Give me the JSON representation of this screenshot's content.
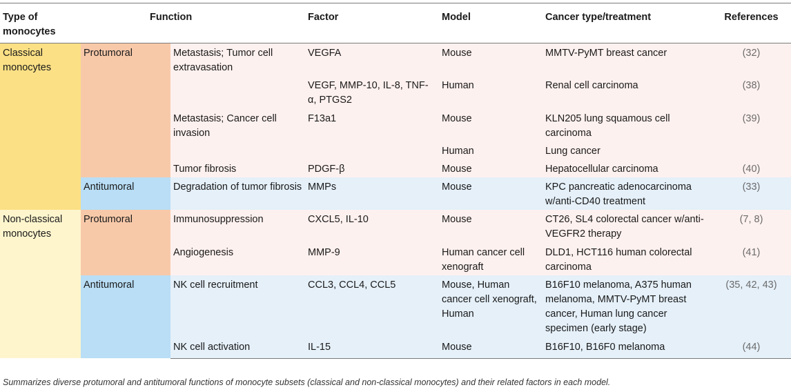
{
  "headers": [
    "Type of monocytes",
    "Function",
    "",
    "Factor",
    "Model",
    "Cancer type/treatment",
    "References"
  ],
  "groups": [
    {
      "type": "Classical monocytes",
      "subgroups": [
        {
          "function": "Protumoral",
          "rows": [
            {
              "subfunction": "Metastasis; Tumor cell extravasation",
              "factor": "VEGFA",
              "model": "Mouse",
              "cancer": "MMTV-PyMT breast cancer",
              "ref": "(32)"
            },
            {
              "subfunction": "",
              "factor": "VEGF, MMP-10, IL-8, TNF-α, PTGS2",
              "model": "Human",
              "cancer": "Renal cell carcinoma",
              "ref": "(38)"
            },
            {
              "subfunction": "Metastasis; Cancer cell invasion",
              "factor": "F13a1",
              "model": "Mouse",
              "cancer": "KLN205 lung squamous cell carcinoma",
              "ref": "(39)"
            },
            {
              "subfunction": "",
              "factor": "",
              "model": "Human",
              "cancer": "Lung cancer",
              "ref": ""
            },
            {
              "subfunction": "Tumor fibrosis",
              "factor": "PDGF-β",
              "model": "Mouse",
              "cancer": "Hepatocellular carcinoma",
              "ref": "(40)"
            }
          ]
        },
        {
          "function": "Antitumoral",
          "rows": [
            {
              "subfunction": "Degradation of tumor fibrosis",
              "factor": "MMPs",
              "model": "Mouse",
              "cancer": "KPC pancreatic adenocarcinoma w/anti-CD40 treatment",
              "ref": "(33)"
            }
          ]
        }
      ]
    },
    {
      "type": "Non-classical monocytes",
      "subgroups": [
        {
          "function": "Protumoral",
          "rows": [
            {
              "subfunction": "Immunosuppression",
              "factor": "CXCL5, IL-10",
              "model": "Mouse",
              "cancer": "CT26, SL4 colorectal cancer w/anti-VEGFR2 therapy",
              "ref": "(7, 8)"
            },
            {
              "subfunction": "Angiogenesis",
              "factor": "MMP-9",
              "model": "Human cancer cell xenograft",
              "cancer": "DLD1, HCT116 human colorectal carcinoma",
              "ref": "(41)"
            }
          ]
        },
        {
          "function": "Antitumoral",
          "rows": [
            {
              "subfunction": "NK cell recruitment",
              "factor": "CCL3, CCL4, CCL5",
              "model": "Mouse, Human cancer cell xenograft, Human",
              "cancer": "B16F10 melanoma, A375 human melanoma, MMTV-PyMT breast cancer, Human lung cancer specimen (early stage)",
              "ref": "(35, 42, 43)"
            },
            {
              "subfunction": "NK cell activation",
              "factor": "IL-15",
              "model": "Mouse",
              "cancer": "B16F10, B16F0 melanoma",
              "ref": "(44)"
            }
          ]
        }
      ]
    }
  ],
  "caption": "Summarizes diverse protumoral and antitumoral functions of monocyte subsets (classical and non-classical monocytes) and their related factors in each model."
}
